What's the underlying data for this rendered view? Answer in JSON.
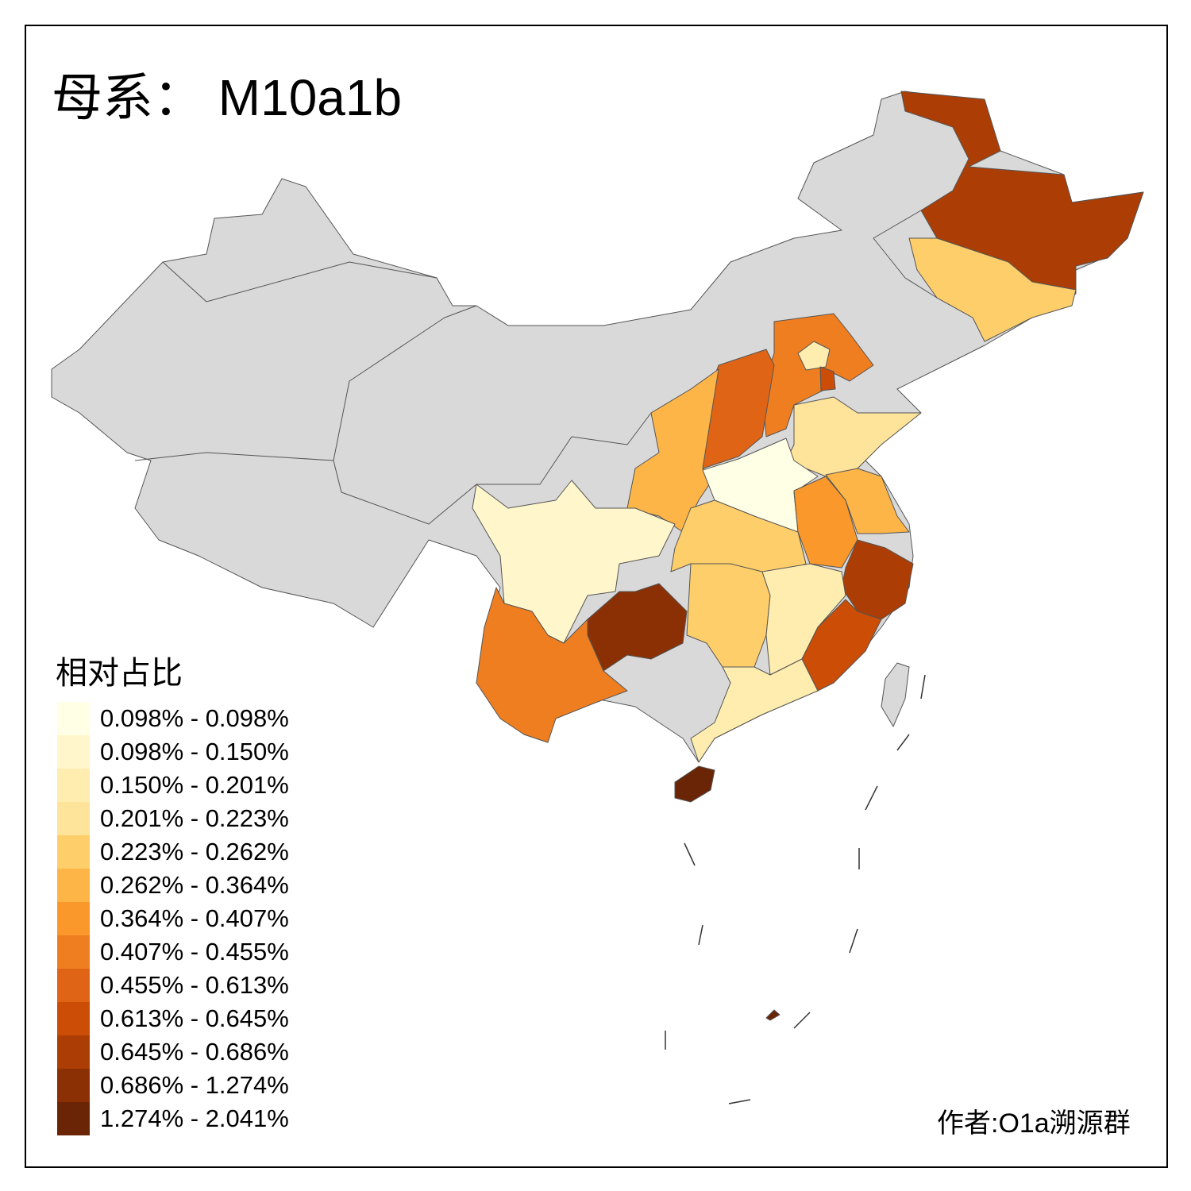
{
  "title": {
    "prefix": "母系：",
    "haplogroup": "M10a1b"
  },
  "legend": {
    "title": "相对占比",
    "classes": [
      {
        "label": "0.098% - 0.098%",
        "color": "#FFFFE5"
      },
      {
        "label": "0.098% - 0.150%",
        "color": "#FFF7CB"
      },
      {
        "label": "0.150% - 0.201%",
        "color": "#FEEDAE"
      },
      {
        "label": "0.201% - 0.223%",
        "color": "#FEE39A"
      },
      {
        "label": "0.223% - 0.262%",
        "color": "#FECE6A"
      },
      {
        "label": "0.262% - 0.364%",
        "color": "#FDB548"
      },
      {
        "label": "0.364% - 0.407%",
        "color": "#FB982B"
      },
      {
        "label": "0.407% - 0.455%",
        "color": "#EF7E21"
      },
      {
        "label": "0.455% - 0.613%",
        "color": "#E06415"
      },
      {
        "label": "0.613% - 0.645%",
        "color": "#CB4D06"
      },
      {
        "label": "0.645% - 0.686%",
        "color": "#AC3D04"
      },
      {
        "label": "0.686% - 1.274%",
        "color": "#8A3004"
      },
      {
        "label": "1.274% - 2.041%",
        "color": "#6A2406"
      }
    ]
  },
  "no_data_color": "#D9D9D9",
  "region_classes": {
    "heilongjiang": 10,
    "jilin": 4,
    "beijing": 2,
    "hebei": 7,
    "tianjin": 9,
    "shanxi": 8,
    "shaanxi": 5,
    "shandong": 3,
    "henan": 0,
    "jiangsu": 5,
    "anhui": 6,
    "zhejiang": 10,
    "hubei": 4,
    "sichuan": 1,
    "guizhou": 11,
    "yunnan": 7,
    "hunan": 4,
    "jiangxi": 2,
    "fujian": 9,
    "guangdong": 2,
    "hainan": 12,
    "islet": 12
  },
  "author": "作者:O1a溯源群"
}
